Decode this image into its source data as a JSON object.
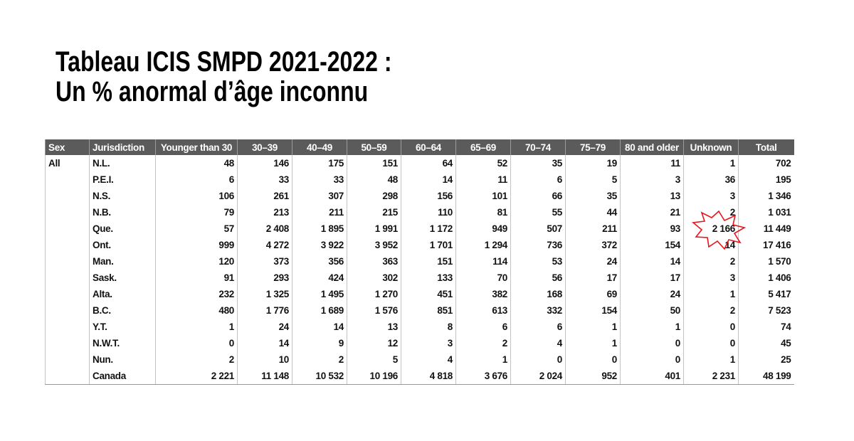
{
  "header": {
    "title_line1": "Tableau ICIS SMPD 2021-2022 :",
    "title_line2": "Un % anormal d’âge inconnu"
  },
  "table": {
    "headers": [
      "Sex",
      "Jurisdiction",
      "Younger than 30",
      "30–39",
      "40–49",
      "50–59",
      "60–64",
      "65–69",
      "70–74",
      "75–79",
      "80 and older",
      "Unknown",
      "Total"
    ],
    "group": "All",
    "rows": [
      {
        "jurisdiction": "N.L.",
        "values": [
          "48",
          "146",
          "175",
          "151",
          "64",
          "52",
          "35",
          "19",
          "11",
          "1",
          "702"
        ]
      },
      {
        "jurisdiction": "P.E.I.",
        "values": [
          "6",
          "33",
          "33",
          "48",
          "14",
          "11",
          "6",
          "5",
          "3",
          "36",
          "195"
        ]
      },
      {
        "jurisdiction": "N.S.",
        "values": [
          "106",
          "261",
          "307",
          "298",
          "156",
          "101",
          "66",
          "35",
          "13",
          "3",
          "1 346"
        ]
      },
      {
        "jurisdiction": "N.B.",
        "values": [
          "79",
          "213",
          "211",
          "215",
          "110",
          "81",
          "55",
          "44",
          "21",
          "2",
          "1 031"
        ]
      },
      {
        "jurisdiction": "Que.",
        "values": [
          "57",
          "2 408",
          "1 895",
          "1 991",
          "1 172",
          "949",
          "507",
          "211",
          "93",
          "2 166",
          "11 449"
        ]
      },
      {
        "jurisdiction": "Ont.",
        "values": [
          "999",
          "4 272",
          "3 922",
          "3 952",
          "1 701",
          "1 294",
          "736",
          "372",
          "154",
          "14",
          "17 416"
        ]
      },
      {
        "jurisdiction": "Man.",
        "values": [
          "120",
          "373",
          "356",
          "363",
          "151",
          "114",
          "53",
          "24",
          "14",
          "2",
          "1 570"
        ]
      },
      {
        "jurisdiction": "Sask.",
        "values": [
          "91",
          "293",
          "424",
          "302",
          "133",
          "70",
          "56",
          "17",
          "17",
          "3",
          "1 406"
        ]
      },
      {
        "jurisdiction": "Alta.",
        "values": [
          "232",
          "1 325",
          "1 495",
          "1 270",
          "451",
          "382",
          "168",
          "69",
          "24",
          "1",
          "5 417"
        ]
      },
      {
        "jurisdiction": "B.C.",
        "values": [
          "480",
          "1 776",
          "1 689",
          "1 576",
          "851",
          "613",
          "332",
          "154",
          "50",
          "2",
          "7 523"
        ]
      },
      {
        "jurisdiction": "Y.T.",
        "values": [
          "1",
          "24",
          "14",
          "13",
          "8",
          "6",
          "6",
          "1",
          "1",
          "0",
          "74"
        ]
      },
      {
        "jurisdiction": "N.W.T.",
        "values": [
          "0",
          "14",
          "9",
          "12",
          "3",
          "2",
          "4",
          "1",
          "0",
          "0",
          "45"
        ]
      },
      {
        "jurisdiction": "Nun.",
        "values": [
          "2",
          "10",
          "2",
          "5",
          "4",
          "1",
          "0",
          "0",
          "0",
          "1",
          "25"
        ]
      },
      {
        "jurisdiction": "Canada",
        "values": [
          "2 221",
          "11 148",
          "10 532",
          "10 196",
          "4 818",
          "3 676",
          "2 024",
          "952",
          "401",
          "2 231",
          "48 199"
        ]
      }
    ]
  }
}
